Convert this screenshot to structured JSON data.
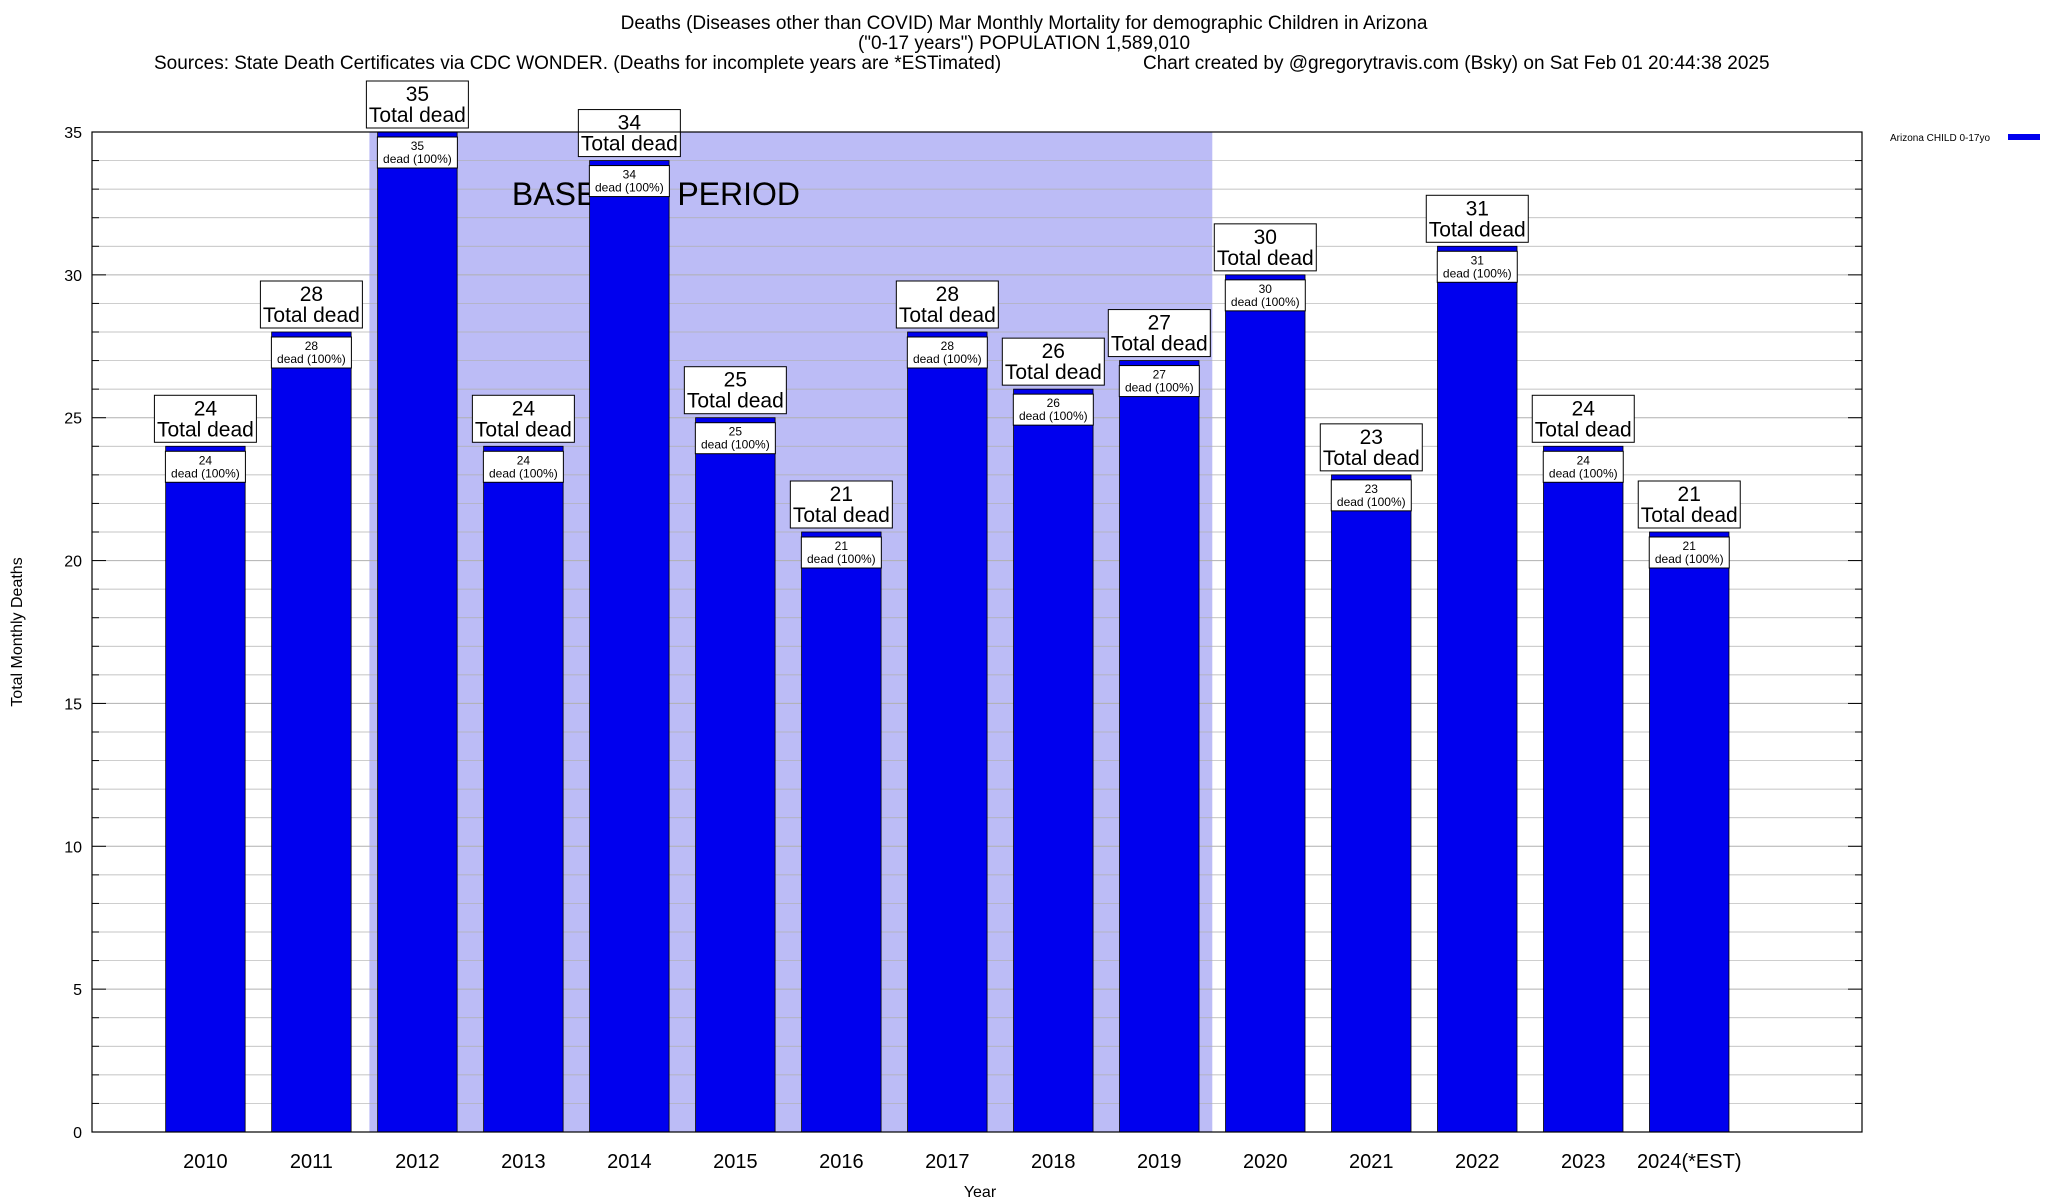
{
  "title": "Deaths (Diseases other than COVID) Mar Monthly Mortality for demographic Children in Arizona",
  "subtitle": "(\"0-17 years\") POPULATION 1,589,010",
  "sources": "Sources: State Death Certificates via CDC WONDER. (Deaths for incomplete years are *ESTimated)",
  "credit": "Chart created by @gregorytravis.com (Bsky) on Sat Feb 01 20:44:38 2025",
  "colors": {
    "bar": "#0000ee",
    "baseline_band": "#bcbcf6",
    "grid": "#b0b0b0"
  },
  "chart_data": {
    "type": "bar",
    "title": "Deaths (Diseases other than COVID) Mar Monthly Mortality for demographic Children in Arizona",
    "xlabel": "Year",
    "ylabel": "Total Monthly Deaths",
    "ylim": [
      0,
      35
    ],
    "yticks": [
      0,
      5,
      10,
      15,
      20,
      25,
      30,
      35
    ],
    "grid": true,
    "legend_position": "top-right",
    "categories": [
      "2010",
      "2011",
      "2012",
      "2013",
      "2014",
      "2015",
      "2016",
      "2017",
      "2018",
      "2019",
      "2020",
      "2021",
      "2022",
      "2023",
      "2024(*EST)"
    ],
    "series": [
      {
        "name": "Arizona CHILD 0-17yo",
        "values": [
          24,
          28,
          35,
          24,
          34,
          25,
          21,
          28,
          26,
          27,
          30,
          23,
          31,
          24,
          21
        ]
      }
    ],
    "top_label_suffix": "Total dead",
    "inner_label_suffix": "dead (100%)",
    "baseline": {
      "label": "BASELINE PERIOD",
      "from": "2012",
      "to": "2019"
    }
  }
}
